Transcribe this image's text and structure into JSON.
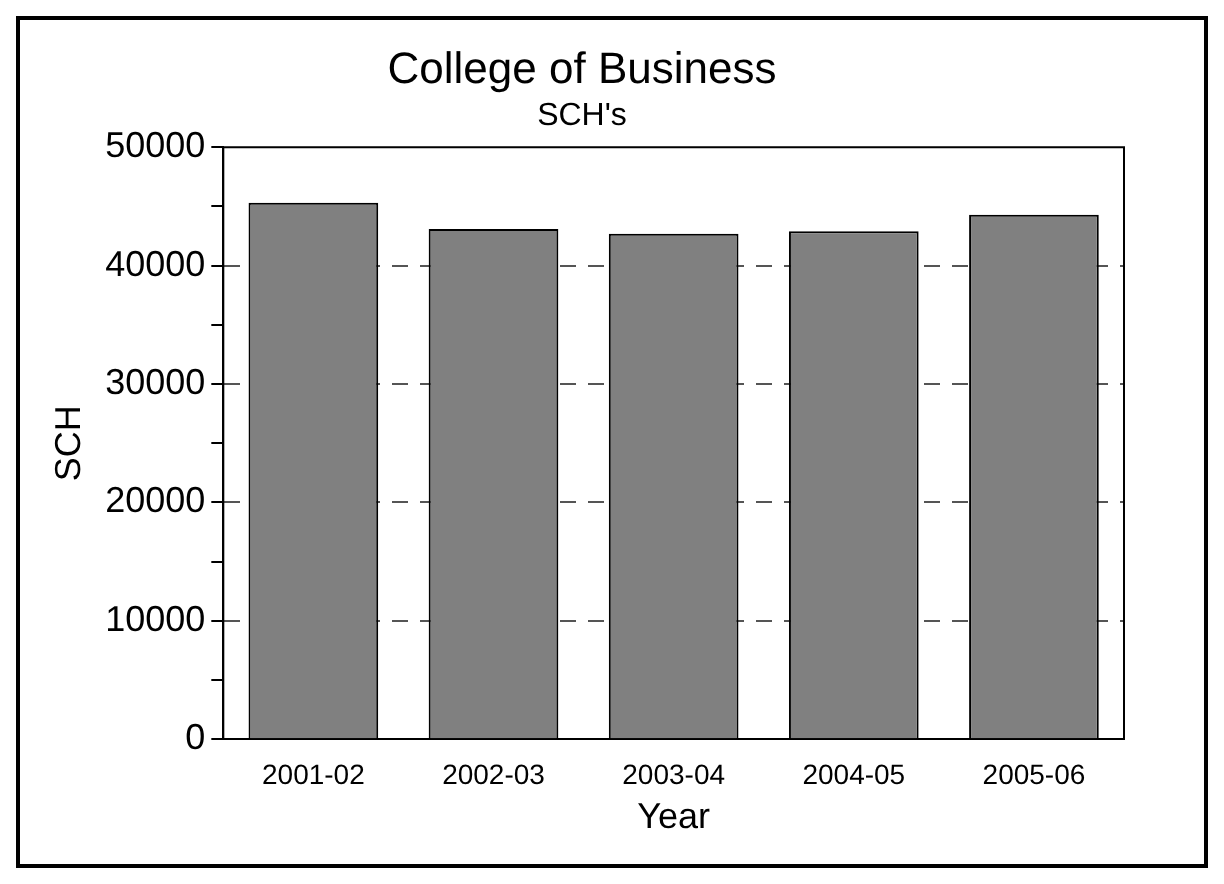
{
  "chart_data": {
    "type": "bar",
    "title": "College of Business",
    "subtitle": "SCH's",
    "xlabel": "Year",
    "ylabel": "SCH",
    "categories": [
      "2001-02",
      "2002-03",
      "2003-04",
      "2004-05",
      "2005-06"
    ],
    "values": [
      45300,
      43100,
      42700,
      42900,
      44300
    ],
    "color": "#808080",
    "ylim": [
      0,
      50000
    ],
    "yticks": [
      0,
      {
        "value": 5000,
        "label": null
      },
      10000,
      {
        "value": 15000,
        "label": null
      },
      20000,
      {
        "value": 25000,
        "label": null
      },
      30000,
      {
        "value": 35000,
        "label": null
      },
      40000,
      {
        "value": 45000,
        "label": null
      },
      50000
    ],
    "grid": "y",
    "legend": false
  }
}
